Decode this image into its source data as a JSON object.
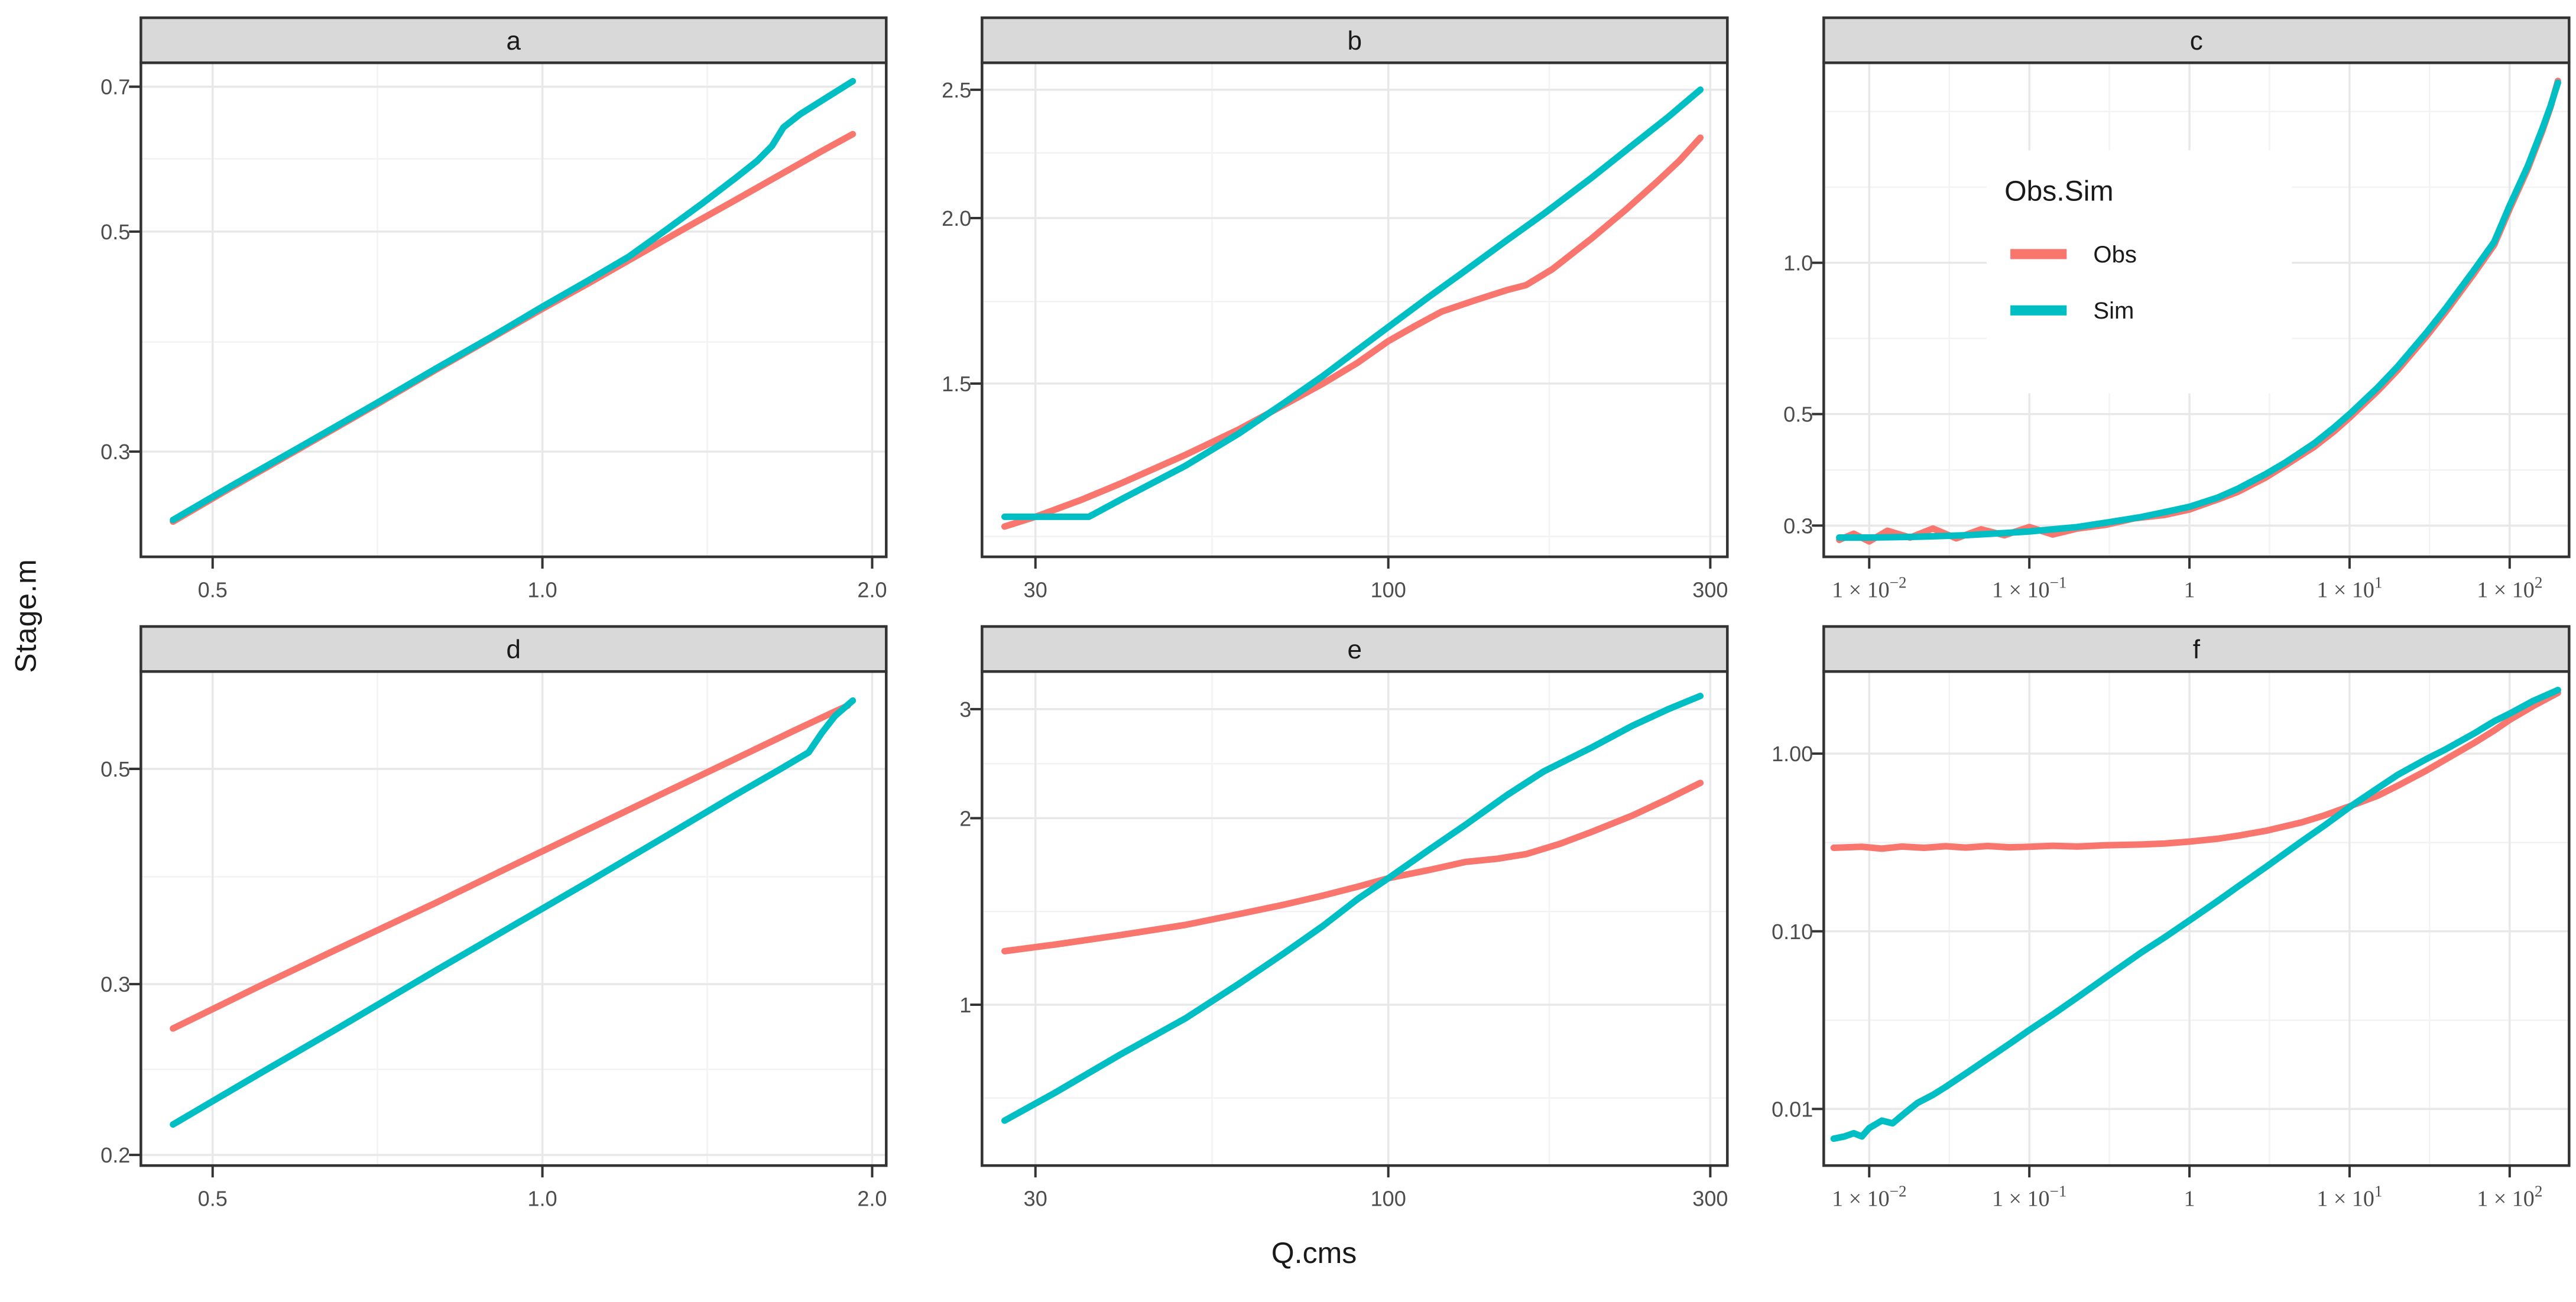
{
  "figure": {
    "y_title": "Stage.m",
    "x_title": "Q.cms"
  },
  "colors": {
    "obs": "#F8766D",
    "sim": "#00BFC4",
    "strip_bg": "#D9D9D9",
    "strip_text": "#1A1A1A",
    "panel_border": "#333333",
    "grid_major": "#E8E8E8",
    "grid_minor": "#F3F3F3",
    "tick_text": "#4D4D4D",
    "panel_bg": "#FFFFFF"
  },
  "chart_data": {
    "type": "line",
    "x_label": "Q.cms",
    "y_label": "Stage.m",
    "x_scale": "log10",
    "y_scale": "log10",
    "legend": {
      "title": "Obs.Sim",
      "position": "inside-facet-c",
      "items": [
        {
          "label": "Obs",
          "color": "#F8766D"
        },
        {
          "label": "Sim",
          "color": "#00BFC4"
        }
      ]
    },
    "facets": [
      {
        "label": "a",
        "xlim": [
          0.43,
          2.06
        ],
        "ylim": [
          0.235,
          0.74
        ],
        "x_breaks": [
          {
            "v": 0.5,
            "label": "0.5"
          },
          {
            "v": 1.0,
            "label": "1.0"
          },
          {
            "v": 2.0,
            "label": "2.0"
          }
        ],
        "x_minor": [
          0.707,
          1.414
        ],
        "y_breaks": [
          {
            "v": 0.7,
            "label": "0.7"
          },
          {
            "v": 0.5,
            "label": "0.5"
          },
          {
            "v": 0.3,
            "label": "0.3"
          }
        ],
        "y_minor": [
          0.387,
          0.592
        ],
        "series": [
          {
            "name": "Obs",
            "color": "#F8766D",
            "x": [
              0.46,
              0.52,
              0.6,
              0.7,
              0.8,
              0.9,
              1.0,
              1.1,
              1.2,
              1.35,
              1.5,
              1.65,
              1.8,
              1.92
            ],
            "y": [
              0.255,
              0.276,
              0.302,
              0.333,
              0.363,
              0.391,
              0.418,
              0.443,
              0.468,
              0.504,
              0.538,
              0.571,
              0.603,
              0.627
            ]
          },
          {
            "name": "Sim",
            "color": "#00BFC4",
            "x": [
              0.46,
              0.52,
              0.6,
              0.7,
              0.8,
              0.9,
              1.0,
              1.1,
              1.2,
              1.3,
              1.4,
              1.5,
              1.57,
              1.62,
              1.66,
              1.72,
              1.8,
              1.92
            ],
            "y": [
              0.256,
              0.277,
              0.303,
              0.334,
              0.364,
              0.392,
              0.42,
              0.446,
              0.472,
              0.503,
              0.534,
              0.566,
              0.589,
              0.61,
              0.637,
              0.657,
              0.678,
              0.709
            ]
          }
        ]
      },
      {
        "label": "b",
        "xlim": [
          25,
          318
        ],
        "ylim": [
          1.11,
          2.62
        ],
        "x_breaks": [
          {
            "v": 30,
            "label": "30"
          },
          {
            "v": 100,
            "label": "100"
          },
          {
            "v": 300,
            "label": "300"
          }
        ],
        "x_minor": [
          54.8,
          173.2
        ],
        "y_breaks": [
          {
            "v": 2.5,
            "label": "2.5"
          },
          {
            "v": 2.0,
            "label": "2.0"
          },
          {
            "v": 1.5,
            "label": "1.5"
          }
        ],
        "y_minor": [
          1.15,
          1.73,
          2.24
        ],
        "series": [
          {
            "name": "Obs",
            "color": "#F8766D",
            "x": [
              27,
              30,
              35,
              40,
              50,
              60,
              70,
              80,
              90,
              100,
              110,
              120,
              135,
              150,
              160,
              175,
              200,
              225,
              250,
              270,
              290
            ],
            "y": [
              1.17,
              1.19,
              1.225,
              1.26,
              1.325,
              1.385,
              1.445,
              1.5,
              1.555,
              1.615,
              1.66,
              1.7,
              1.735,
              1.765,
              1.78,
              1.83,
              1.93,
              2.03,
              2.13,
              2.21,
              2.3
            ]
          },
          {
            "name": "Sim",
            "color": "#00BFC4",
            "x": [
              27,
              32,
              36,
              40,
              50,
              60,
              70,
              80,
              90,
              100,
              115,
              130,
              150,
              170,
              200,
              230,
              260,
              290
            ],
            "y": [
              1.19,
              1.19,
              1.19,
              1.225,
              1.3,
              1.375,
              1.45,
              1.52,
              1.59,
              1.655,
              1.745,
              1.825,
              1.925,
              2.015,
              2.145,
              2.27,
              2.385,
              2.5
            ]
          }
        ]
      },
      {
        "label": "c",
        "has_legend": true,
        "xlim": [
          0.0052,
          235
        ],
        "ylim": [
          0.26,
          2.5
        ],
        "x_breaks": [
          {
            "v": 0.01,
            "label": "1 × 10⁻²",
            "base": "1 × 10",
            "sup": "−2"
          },
          {
            "v": 0.1,
            "label": "1 × 10⁻¹",
            "base": "1 × 10",
            "sup": "−1"
          },
          {
            "v": 1,
            "label": "1",
            "base": "1",
            "sup": ""
          },
          {
            "v": 10,
            "label": "1 × 10¹",
            "base": "1 × 10",
            "sup": "1"
          },
          {
            "v": 100,
            "label": "1 × 10²",
            "base": "1 × 10",
            "sup": "2"
          }
        ],
        "x_minor": [
          0.0316,
          0.316,
          3.162,
          31.62
        ],
        "y_breaks": [
          {
            "v": 1.0,
            "label": "1.0"
          },
          {
            "v": 0.5,
            "label": "0.5"
          },
          {
            "v": 0.3,
            "label": "0.3"
          }
        ],
        "y_minor": [
          0.387,
          0.707,
          1.414,
          2.0
        ],
        "series": [
          {
            "name": "Obs",
            "color": "#F8766D",
            "x": [
              0.0065,
              0.008,
              0.01,
              0.013,
              0.018,
              0.025,
              0.035,
              0.05,
              0.07,
              0.1,
              0.14,
              0.2,
              0.3,
              0.45,
              0.7,
              1,
              1.5,
              2,
              3,
              4,
              6,
              8,
              10,
              15,
              20,
              30,
              40,
              60,
              80,
              100,
              130,
              160,
              180,
              200
            ],
            "y": [
              0.281,
              0.289,
              0.279,
              0.293,
              0.284,
              0.296,
              0.283,
              0.295,
              0.287,
              0.298,
              0.288,
              0.296,
              0.301,
              0.31,
              0.315,
              0.323,
              0.338,
              0.35,
              0.374,
              0.396,
              0.43,
              0.462,
              0.492,
              0.556,
              0.612,
              0.712,
              0.8,
              0.953,
              1.085,
              1.28,
              1.54,
              1.83,
              2.04,
              2.3
            ]
          },
          {
            "name": "Sim",
            "color": "#00BFC4",
            "x": [
              0.0065,
              0.01,
              0.02,
              0.04,
              0.07,
              0.1,
              0.2,
              0.3,
              0.5,
              0.7,
              1,
              1.5,
              2,
              3,
              4,
              6,
              8,
              10,
              15,
              20,
              30,
              40,
              60,
              80,
              100,
              130,
              160,
              180,
              200
            ],
            "y": [
              0.284,
              0.284,
              0.285,
              0.287,
              0.29,
              0.292,
              0.298,
              0.304,
              0.312,
              0.319,
              0.327,
              0.341,
              0.355,
              0.38,
              0.401,
              0.437,
              0.47,
              0.5,
              0.565,
              0.622,
              0.724,
              0.813,
              0.968,
              1.1,
              1.3,
              1.56,
              1.85,
              2.05,
              2.28
            ]
          }
        ]
      },
      {
        "label": "d",
        "xlim": [
          0.43,
          2.06
        ],
        "ylim": [
          0.195,
          0.63
        ],
        "x_breaks": [
          {
            "v": 0.5,
            "label": "0.5"
          },
          {
            "v": 1.0,
            "label": "1.0"
          },
          {
            "v": 2.0,
            "label": "2.0"
          }
        ],
        "x_minor": [
          0.707,
          1.414
        ],
        "y_breaks": [
          {
            "v": 0.5,
            "label": "0.5"
          },
          {
            "v": 0.3,
            "label": "0.3"
          },
          {
            "v": 0.2,
            "label": "0.2"
          }
        ],
        "y_minor": [
          0.245,
          0.387
        ],
        "series": [
          {
            "name": "Obs",
            "color": "#F8766D",
            "x": [
              0.46,
              0.55,
              0.65,
              0.8,
              0.95,
              1.1,
              1.3,
              1.5,
              1.7,
              1.85,
              1.9
            ],
            "y": [
              0.27,
              0.298,
              0.326,
              0.364,
              0.4,
              0.433,
              0.474,
              0.512,
              0.548,
              0.573,
              0.581
            ]
          },
          {
            "name": "Sim",
            "color": "#00BFC4",
            "x": [
              0.46,
              0.55,
              0.65,
              0.8,
              0.95,
              1.1,
              1.3,
              1.5,
              1.65,
              1.75,
              1.8,
              1.85,
              1.9,
              1.92
            ],
            "y": [
              0.215,
              0.242,
              0.27,
              0.31,
              0.347,
              0.382,
              0.427,
              0.47,
              0.5,
              0.52,
              0.545,
              0.567,
              0.582,
              0.588
            ]
          }
        ]
      },
      {
        "label": "e",
        "xlim": [
          25,
          318
        ],
        "ylim": [
          0.55,
          3.45
        ],
        "x_breaks": [
          {
            "v": 30,
            "label": "30"
          },
          {
            "v": 100,
            "label": "100"
          },
          {
            "v": 300,
            "label": "300"
          }
        ],
        "x_minor": [
          54.8,
          173.2
        ],
        "y_breaks": [
          {
            "v": 3,
            "label": "3"
          },
          {
            "v": 2,
            "label": "2"
          },
          {
            "v": 1,
            "label": "1"
          }
        ],
        "y_minor": [
          0.707,
          1.414,
          2.449
        ],
        "series": [
          {
            "name": "Obs",
            "color": "#F8766D",
            "x": [
              27,
              32,
              40,
              50,
              60,
              70,
              80,
              90,
              100,
              115,
              130,
              145,
              160,
              180,
              200,
              230,
              260,
              290
            ],
            "y": [
              1.22,
              1.25,
              1.295,
              1.345,
              1.4,
              1.45,
              1.5,
              1.55,
              1.6,
              1.65,
              1.7,
              1.72,
              1.75,
              1.82,
              1.9,
              2.02,
              2.15,
              2.28
            ]
          },
          {
            "name": "Sim",
            "color": "#00BFC4",
            "x": [
              27,
              32,
              40,
              50,
              60,
              70,
              80,
              90,
              100,
              115,
              130,
              150,
              170,
              200,
              230,
              260,
              290
            ],
            "y": [
              0.65,
              0.72,
              0.83,
              0.95,
              1.08,
              1.21,
              1.34,
              1.48,
              1.6,
              1.78,
              1.95,
              2.18,
              2.38,
              2.6,
              2.82,
              3.0,
              3.15
            ]
          }
        ]
      },
      {
        "label": "f",
        "xlim": [
          0.0052,
          235
        ],
        "ylim": [
          0.0048,
          2.9
        ],
        "x_breaks": [
          {
            "v": 0.01,
            "label": "1 × 10⁻²",
            "base": "1 × 10",
            "sup": "−2"
          },
          {
            "v": 0.1,
            "label": "1 × 10⁻¹",
            "base": "1 × 10",
            "sup": "−1"
          },
          {
            "v": 1,
            "label": "1",
            "base": "1",
            "sup": ""
          },
          {
            "v": 10,
            "label": "1 × 10¹",
            "base": "1 × 10",
            "sup": "1"
          },
          {
            "v": 100,
            "label": "1 × 10²",
            "base": "1 × 10",
            "sup": "2"
          }
        ],
        "x_minor": [
          0.0316,
          0.316,
          3.162,
          31.62
        ],
        "y_breaks": [
          {
            "v": 1.0,
            "label": "1.00"
          },
          {
            "v": 0.1,
            "label": "0.10"
          },
          {
            "v": 0.01,
            "label": "0.01"
          }
        ],
        "y_minor": [
          0.0316,
          0.316
        ],
        "series": [
          {
            "name": "Obs",
            "color": "#F8766D",
            "x": [
              0.006,
              0.009,
              0.012,
              0.016,
              0.022,
              0.03,
              0.04,
              0.055,
              0.075,
              0.1,
              0.14,
              0.2,
              0.3,
              0.5,
              0.7,
              1,
              1.5,
              2,
              3,
              5,
              7,
              10,
              15,
              20,
              30,
              40,
              60,
              80,
              100,
              140,
              200
            ],
            "y": [
              0.295,
              0.299,
              0.292,
              0.3,
              0.295,
              0.301,
              0.296,
              0.302,
              0.297,
              0.299,
              0.303,
              0.3,
              0.305,
              0.308,
              0.312,
              0.32,
              0.332,
              0.345,
              0.368,
              0.41,
              0.45,
              0.505,
              0.58,
              0.66,
              0.8,
              0.93,
              1.15,
              1.35,
              1.55,
              1.85,
              2.2
            ]
          },
          {
            "name": "Sim",
            "color": "#00BFC4",
            "x": [
              0.006,
              0.007,
              0.008,
              0.009,
              0.01,
              0.012,
              0.014,
              0.017,
              0.02,
              0.025,
              0.03,
              0.04,
              0.055,
              0.075,
              0.1,
              0.14,
              0.2,
              0.3,
              0.5,
              0.7,
              1,
              1.5,
              2,
              3,
              5,
              7,
              10,
              15,
              20,
              30,
              40,
              60,
              80,
              100,
              140,
              200
            ],
            "y": [
              0.0068,
              0.007,
              0.0073,
              0.007,
              0.0078,
              0.0086,
              0.0083,
              0.0096,
              0.0108,
              0.012,
              0.0133,
              0.0158,
              0.0192,
              0.0232,
              0.0278,
              0.034,
              0.0425,
              0.055,
              0.076,
              0.0925,
              0.115,
              0.148,
              0.178,
              0.23,
              0.32,
              0.395,
              0.5,
              0.64,
              0.76,
              0.93,
              1.06,
              1.3,
              1.52,
              1.68,
              1.98,
              2.28
            ]
          }
        ]
      }
    ]
  }
}
